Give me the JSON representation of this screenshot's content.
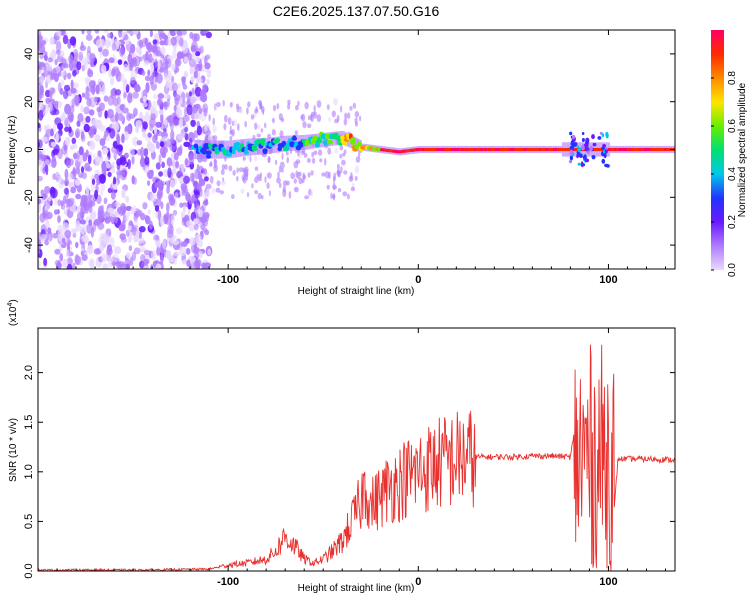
{
  "title": "C2E6.2025.137.07.50.G16",
  "colors": {
    "spectrogram_bg": "#ffffff",
    "snr_line": "#e8312e",
    "axis": "#000000"
  },
  "chart_data": [
    {
      "type": "heatmap",
      "xlabel": "Height of straight line (km)",
      "ylabel": "Frequency (Hz)",
      "xlim": [
        -200,
        135
      ],
      "ylim": [
        -50,
        50
      ],
      "x_ticks": [
        -100,
        0,
        100
      ],
      "x_tick_labels": [
        "-100",
        "0",
        "100"
      ],
      "y_ticks": [
        -40,
        -20,
        0,
        20,
        40
      ],
      "y_tick_labels": [
        "-40",
        "-20",
        "0",
        "20",
        "40"
      ],
      "signal_ridge": {
        "x": [
          -115,
          -100,
          -90,
          -80,
          -70,
          -60,
          -50,
          -40,
          -35,
          -30,
          -20,
          -10,
          0,
          20,
          40,
          60,
          80,
          90,
          100,
          110,
          135
        ],
        "frequency": [
          0,
          0,
          1,
          1.5,
          2.5,
          3,
          4,
          5,
          3,
          1,
          0,
          -1,
          0,
          0,
          0,
          0,
          0,
          0,
          0,
          0,
          0
        ]
      },
      "noise_region": [
        -200,
        -110
      ],
      "colorbar": {
        "label": "Normalized spectral amplitude",
        "range": [
          0,
          1
        ],
        "ticks": [
          0.0,
          0.2,
          0.4,
          0.6,
          0.8
        ],
        "tick_labels": [
          "0.0",
          "0.2",
          "0.4",
          "0.6",
          "0.8"
        ],
        "colormap": [
          "#e8d8ff",
          "#b07cff",
          "#6a1aff",
          "#2233ff",
          "#00c8e8",
          "#00e070",
          "#6aee00",
          "#ffe400",
          "#ff8a00",
          "#ff2a00",
          "#ff0066"
        ]
      }
    },
    {
      "type": "line",
      "xlabel": "Height of straight line (km)",
      "ylabel": "SNR (10 * v/v)",
      "scale_label": "(x10",
      "scale_exponent": "4",
      "scale_close": ")",
      "xlim": [
        -200,
        135
      ],
      "ylim": [
        0,
        2.45
      ],
      "x_ticks": [
        -100,
        0,
        100
      ],
      "x_tick_labels": [
        "-100",
        "0",
        "100"
      ],
      "y_ticks": [
        0.0,
        0.5,
        1.0,
        1.5,
        2.0
      ],
      "y_tick_labels": [
        "0.0",
        "0.5",
        "1.0",
        "1.5",
        "2.0"
      ],
      "series": [
        {
          "x": [
            -200,
            -150,
            -110,
            -100,
            -90,
            -80,
            -75,
            -70,
            -65,
            -60,
            -55,
            -50,
            -45,
            -40,
            -35,
            -30,
            -28,
            -25,
            -20,
            -15,
            -10,
            -5,
            0,
            10,
            20,
            30,
            40,
            50,
            60,
            70,
            80,
            83,
            85,
            88,
            90,
            93,
            95,
            100,
            103,
            105,
            110,
            120,
            135
          ],
          "y": [
            0.01,
            0.01,
            0.02,
            0.06,
            0.08,
            0.12,
            0.2,
            0.35,
            0.25,
            0.12,
            0.08,
            0.12,
            0.2,
            0.3,
            0.5,
            0.7,
            0.9,
            0.65,
            0.75,
            0.85,
            0.9,
            0.95,
            1.0,
            1.08,
            1.13,
            1.15,
            1.15,
            1.15,
            1.16,
            1.16,
            1.15,
            1.5,
            2.2,
            0.1,
            2.4,
            0.05,
            2.2,
            1.6,
            0.6,
            1.13,
            1.13,
            1.13,
            1.12
          ]
        }
      ]
    }
  ]
}
